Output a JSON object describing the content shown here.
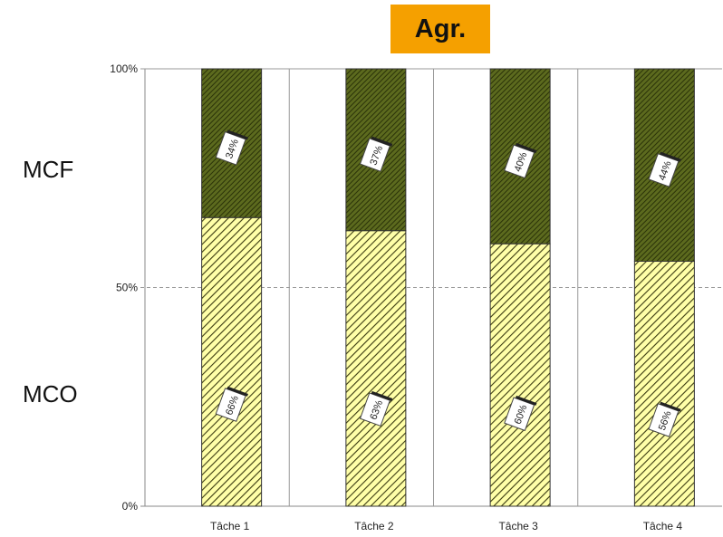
{
  "title": "Agr.",
  "side_labels": {
    "top": "MCF",
    "bottom": "MCO"
  },
  "colors": {
    "title_bg": "#f5a000",
    "mcf_fill": "#5c6a1e",
    "mcf_hatch": "#2a3208",
    "mco_fill": "#ffffa8",
    "mco_hatch": "#3a3a10",
    "grid": "#999999"
  },
  "chart_data": {
    "type": "bar",
    "stacked": true,
    "categories": [
      "Tâche 1",
      "Tâche 2",
      "Tâche 3",
      "Tâche 4"
    ],
    "series": [
      {
        "name": "MCO",
        "values": [
          66,
          63,
          60,
          56
        ],
        "labels": [
          "66%",
          "63%",
          "60%",
          "56%"
        ]
      },
      {
        "name": "MCF",
        "values": [
          34,
          37,
          40,
          44
        ],
        "labels": [
          "34%",
          "37%",
          "40%",
          "44%"
        ]
      }
    ],
    "y_ticks": [
      "0%",
      "50%",
      "100%"
    ],
    "ylim": [
      0,
      100
    ],
    "grid": "dashed line at 50%, vertical separators between categories"
  }
}
